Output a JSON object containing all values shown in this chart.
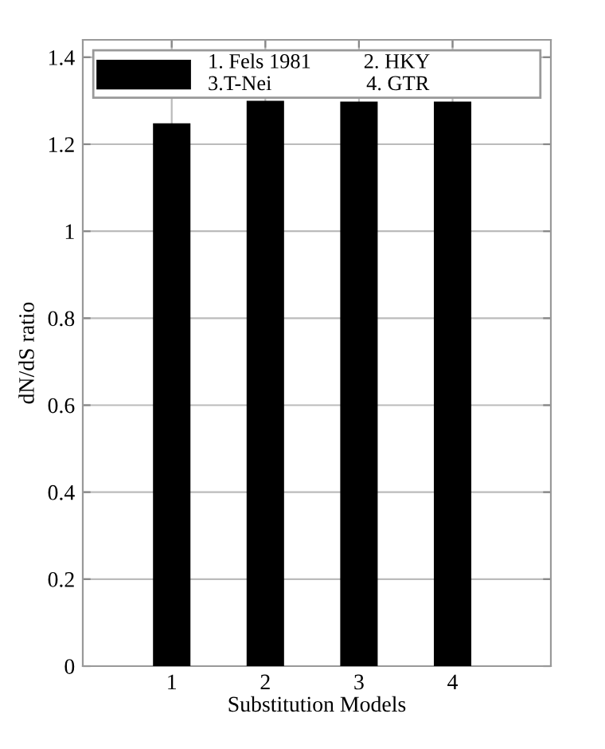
{
  "chart_data": {
    "type": "bar",
    "xlabel": "Substitution Models",
    "ylabel": "dN/dS ratio",
    "categories": [
      "1",
      "2",
      "3",
      "4"
    ],
    "series": [
      {
        "name": "1. Fels 1981          2. HKY\n3.T-Nei                  4. GTR",
        "color": "#000000",
        "values": [
          1.248,
          1.3,
          1.298,
          1.298
        ]
      }
    ],
    "ylim": [
      0,
      1.44
    ],
    "yticks": [
      0,
      0.2,
      0.4,
      0.6,
      0.8,
      1,
      1.2,
      1.4
    ],
    "grid": true,
    "legend": "top"
  }
}
